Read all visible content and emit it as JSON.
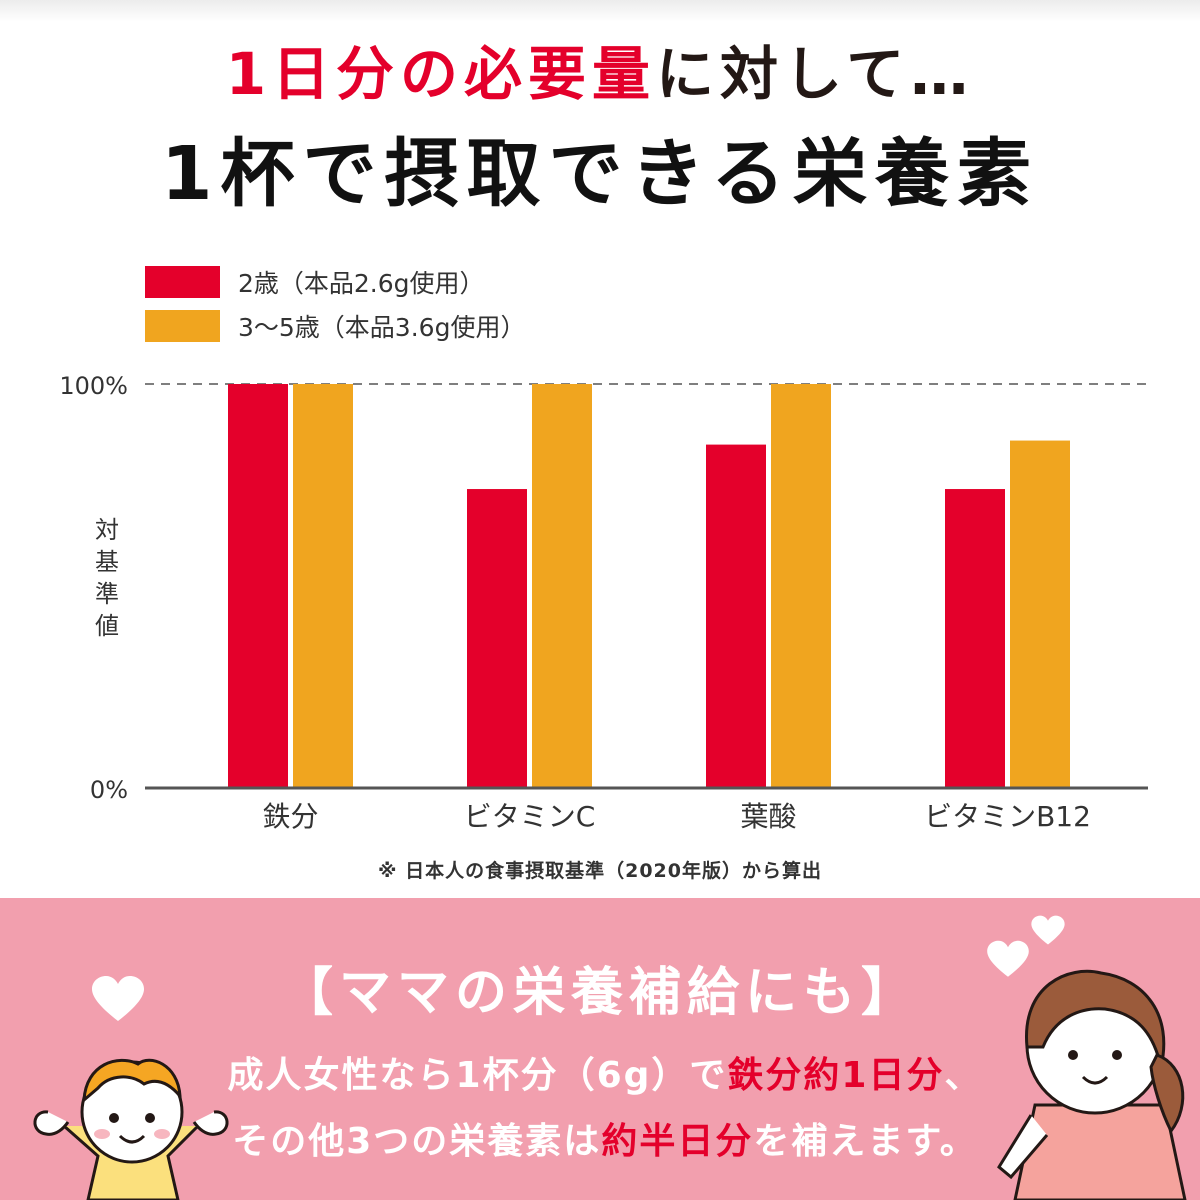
{
  "title": {
    "line1_accent": "1日分の必要量",
    "line1_rest": "に対して…",
    "line2": "1杯で摂取できる栄養素"
  },
  "note": "※ 日本人の食事摂取基準（2020年版）から算出",
  "panel": {
    "heading": "【ママの栄養補給にも】",
    "line1_a": "成人女性なら1杯分（6g）で",
    "line1_b": "鉄分約1日分",
    "line1_c": "、",
    "line2_a": "その他3つの栄養素は",
    "line2_b": "約半日分",
    "line2_c": "を補えます。"
  },
  "colors": {
    "accent_red": "#e4002b",
    "orange": "#f0a51f",
    "pink_panel": "#f29fae",
    "axis": "#555555"
  },
  "chart_data": {
    "type": "bar",
    "categories": [
      "鉄分",
      "ビタミンC",
      "葉酸",
      "ビタミンB12"
    ],
    "series": [
      {
        "name": "2歳（本品2.6g使用）",
        "color": "#e4002b",
        "values": [
          100,
          74,
          85,
          74
        ]
      },
      {
        "name": "3〜5歳（本品3.6g使用）",
        "color": "#f0a51f",
        "values": [
          100,
          100,
          100,
          86
        ]
      }
    ],
    "ylabel": "対基準値",
    "yticks": [
      "0%",
      "100%"
    ],
    "ylim": [
      0,
      100
    ],
    "reference_line": 100,
    "legend": "top-left",
    "grid": false
  }
}
